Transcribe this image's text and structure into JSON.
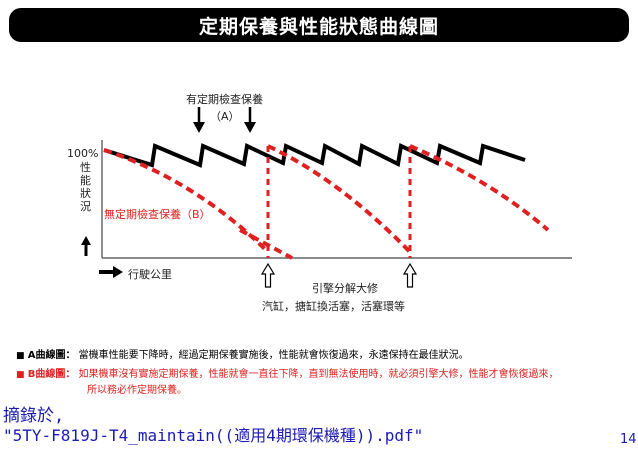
{
  "title": "定期保養與性能狀態曲線圖",
  "labels": {
    "periodic_inspection": "有定期檢查保養",
    "series_a_tag": "（A）",
    "y_max": "100%",
    "y_axis": "性能狀況",
    "no_inspection": "無定期檢查保養（B）",
    "x_axis": "行駛公里",
    "overhaul": "引擎分解大修",
    "overhaul_detail": "汽缸，搪缸換活塞，活塞環等"
  },
  "legend": {
    "a_marker": "■",
    "a_title": "A曲線圖：",
    "a_text": "當機車性能要下降時，經過定期保養實施後，性能就會恢復過來，永遠保持在最佳狀況。",
    "b_marker": "■",
    "b_title": "B曲線圖：",
    "b_text_1": "如果機車沒有實施定期保養，性能就會一直往下降，直到無法使用時，就必須引擎大修，性能才會恢復過來，",
    "b_text_2": "所以務必作定期保養。"
  },
  "footer": {
    "line1": "摘錄於,",
    "line2": "\"5TY-F819J-T4_maintain((適用4期環保機種)).pdf\"",
    "page_number": "14"
  },
  "colors": {
    "series_a": "#000000",
    "series_b": "#e02020",
    "footer": "#1b1bb5"
  }
}
